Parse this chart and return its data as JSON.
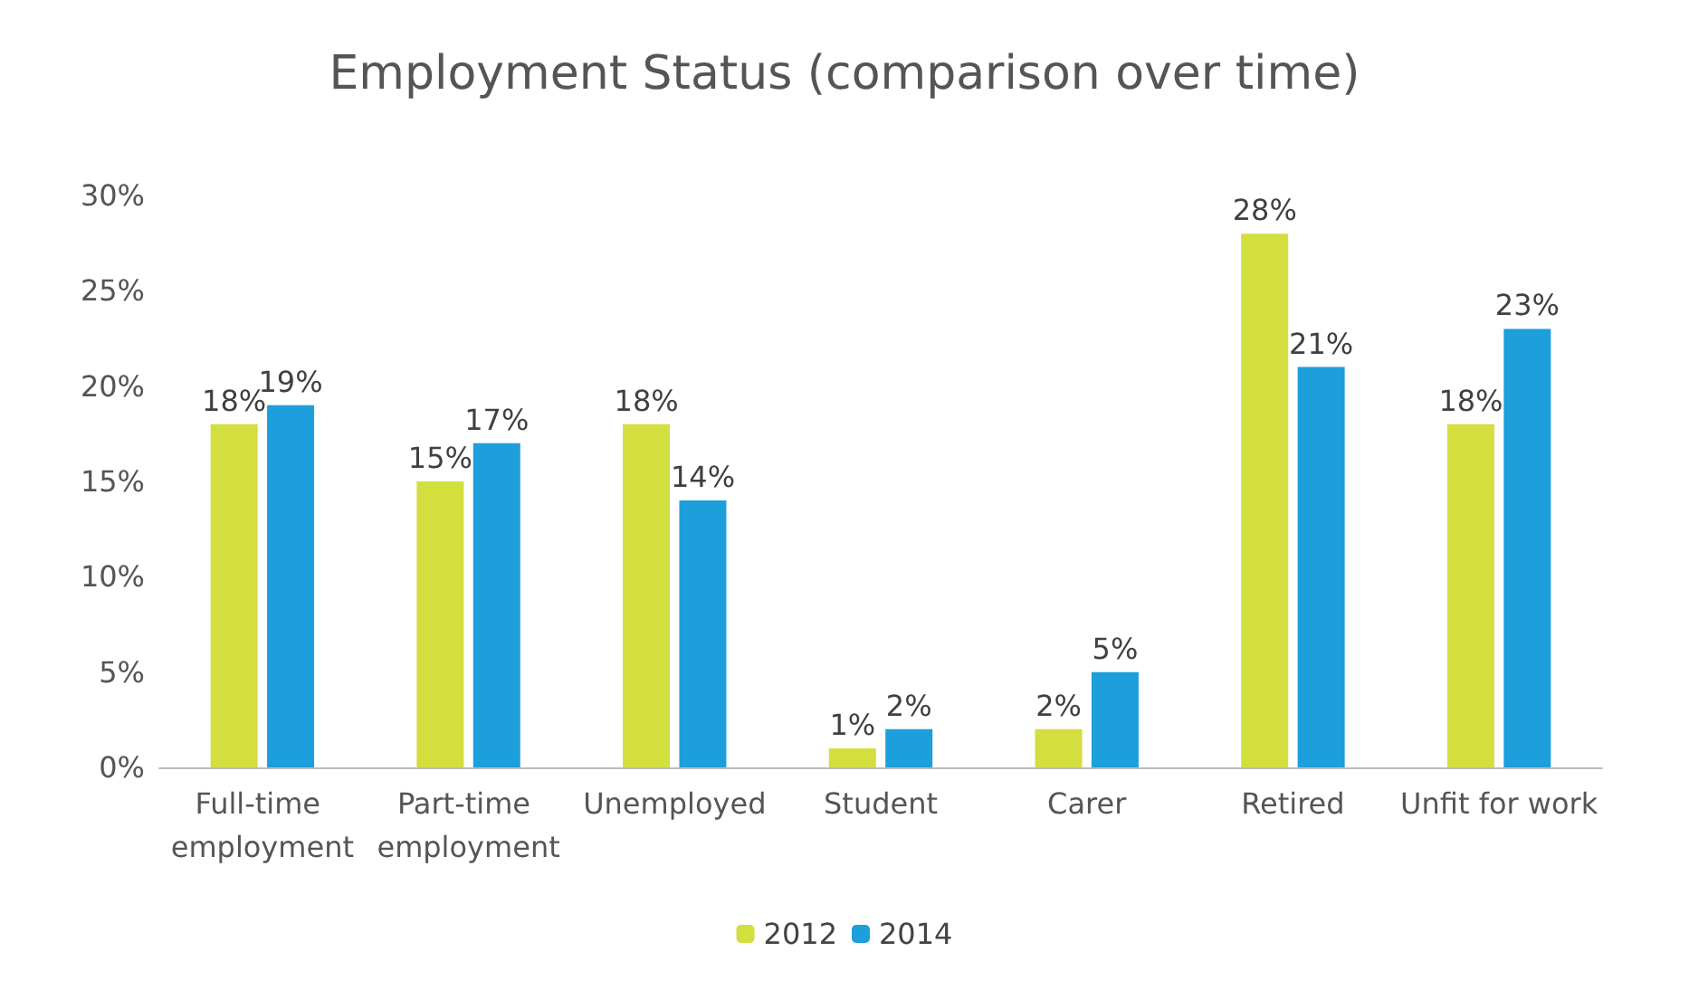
{
  "chart_data": {
    "type": "bar",
    "title": "Employment Status (comparison over time)",
    "categories": [
      "Full-time employment",
      "Part-time employment",
      "Unemployed",
      "Student",
      "Carer",
      "Retired",
      "Unfit for work"
    ],
    "series": [
      {
        "name": "2012",
        "color": "#d3de3f",
        "values": [
          18,
          15,
          18,
          1,
          2,
          28,
          18
        ],
        "value_labels": [
          "18%",
          "15%",
          "18%",
          "1%",
          "2%",
          "28%",
          "18%"
        ]
      },
      {
        "name": "2014",
        "color": "#1c9fda",
        "values": [
          19,
          17,
          14,
          2,
          5,
          21,
          23
        ],
        "value_labels": [
          "19%",
          "17%",
          "14%",
          "2%",
          "5%",
          "21%",
          "23%"
        ]
      }
    ],
    "ylim": [
      0,
      30
    ],
    "yticks": [
      {
        "value": 0,
        "label": "0%"
      },
      {
        "value": 5,
        "label": "5%"
      },
      {
        "value": 10,
        "label": "10%"
      },
      {
        "value": 15,
        "label": "15%"
      },
      {
        "value": 20,
        "label": "20%"
      },
      {
        "value": 25,
        "label": "25%"
      },
      {
        "value": 30,
        "label": "30%"
      }
    ],
    "grid": false,
    "legend": "bottom"
  }
}
